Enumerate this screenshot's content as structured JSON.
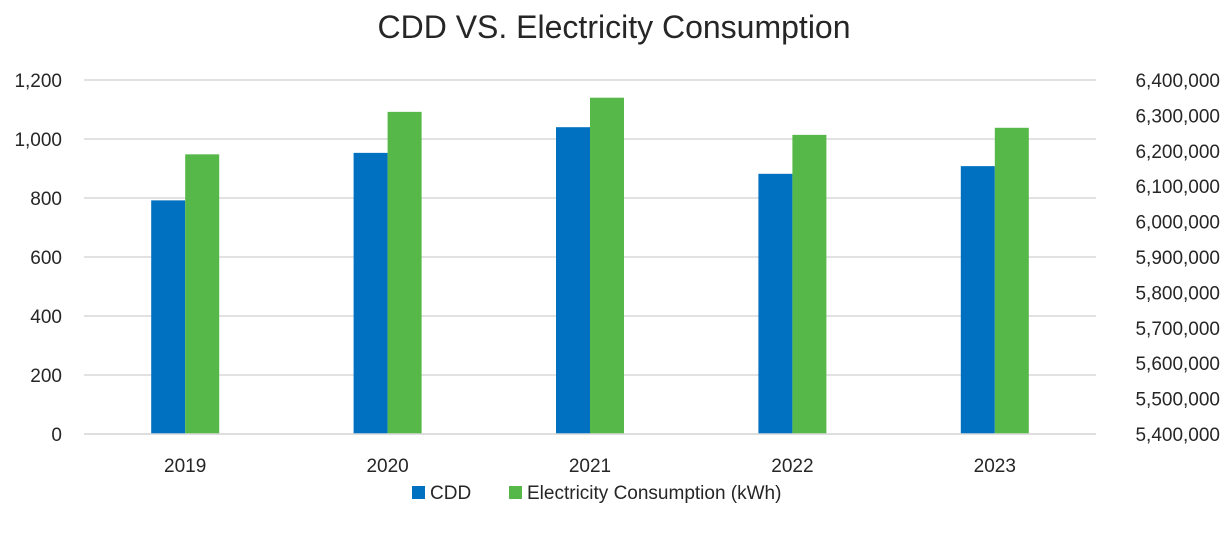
{
  "chart_data": {
    "type": "bar",
    "title": "CDD VS. Electricity Consumption",
    "categories": [
      "2019",
      "2020",
      "2021",
      "2022",
      "2023"
    ],
    "series": [
      {
        "name": "CDD",
        "axis": "left",
        "color": "#0070c0",
        "values": [
          792,
          953,
          1040,
          882,
          908
        ]
      },
      {
        "name": "Electricity Consumption (kWh)",
        "axis": "right",
        "color": "#56b848",
        "values": [
          6190000,
          6310000,
          6350000,
          6245000,
          6265000
        ]
      }
    ],
    "y_left": {
      "min": 0,
      "max": 1200,
      "step": 200,
      "tick_labels": [
        "0",
        "200",
        "400",
        "600",
        "800",
        "1,000",
        "1,200"
      ]
    },
    "y_right": {
      "min": 5400000,
      "max": 6400000,
      "step": 100000,
      "tick_labels": [
        "5,400,000",
        "5,500,000",
        "5,600,000",
        "5,700,000",
        "5,800,000",
        "5,900,000",
        "6,000,000",
        "6,100,000",
        "6,200,000",
        "6,300,000",
        "6,400,000"
      ]
    },
    "grid": true,
    "legend_position": "bottom"
  }
}
